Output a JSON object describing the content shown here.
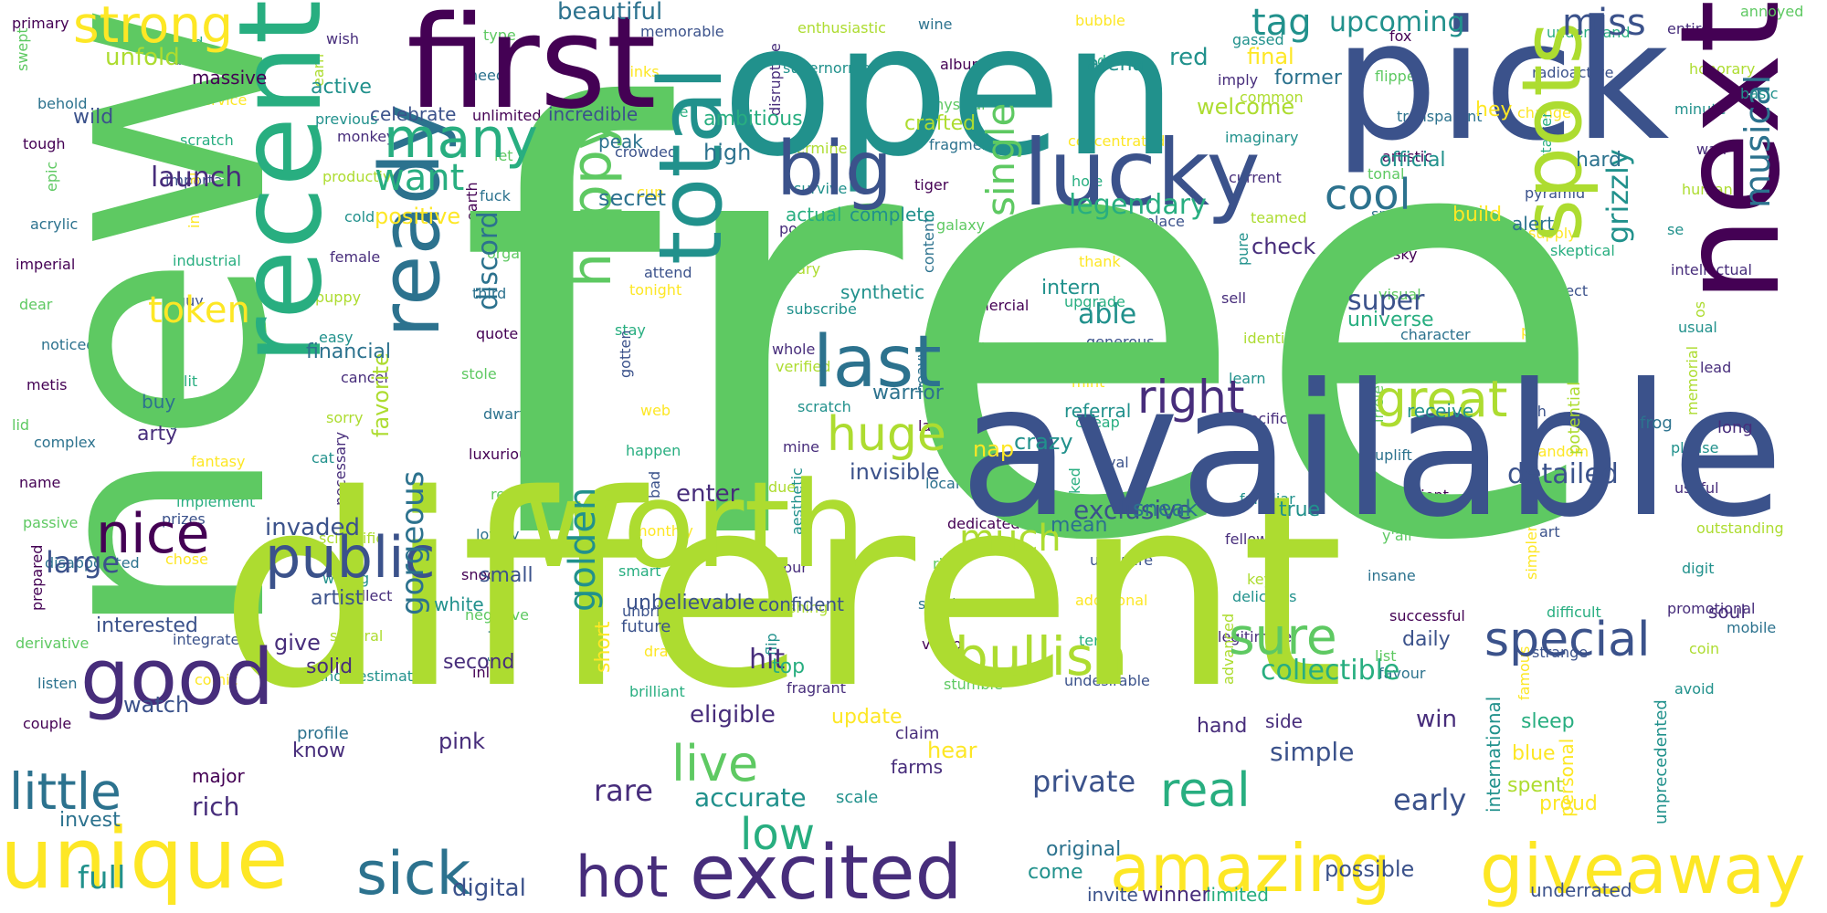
{
  "palette": {
    "dark_purple": "#440154",
    "indigo": "#472d7b",
    "navy_blue": "#3b528b",
    "steel_blue": "#2c728e",
    "teal": "#21918c",
    "sea_green": "#28ae80",
    "green": "#5ec962",
    "lime": "#addc30",
    "yellow": "#fde725"
  },
  "words": [
    {
      "text": "free",
      "color": "#5ec962"
    },
    {
      "text": "new",
      "color": "#5ec962"
    },
    {
      "text": "different",
      "color": "#addc30"
    },
    {
      "text": "available",
      "color": "#3b528b"
    },
    {
      "text": "open",
      "color": "#21918c"
    },
    {
      "text": "pick",
      "color": "#3b528b"
    },
    {
      "text": "first",
      "color": "#440154"
    },
    {
      "text": "recent",
      "color": "#28ae80"
    },
    {
      "text": "next",
      "color": "#440154"
    },
    {
      "text": "worth",
      "color": "#addc30"
    },
    {
      "text": "excited",
      "color": "#472d7b"
    },
    {
      "text": "ready",
      "color": "#2c728e"
    },
    {
      "text": "total",
      "color": "#21918c"
    },
    {
      "text": "lucky",
      "color": "#3b528b"
    },
    {
      "text": "spots",
      "color": "#addc30"
    },
    {
      "text": "unique",
      "color": "#fde725"
    },
    {
      "text": "giveaway",
      "color": "#fde725"
    },
    {
      "text": "amazing",
      "color": "#fde725"
    },
    {
      "text": "sick",
      "color": "#2c728e"
    },
    {
      "text": "hot",
      "color": "#472d7b"
    },
    {
      "text": "good",
      "color": "#472d7b"
    },
    {
      "text": "nice",
      "color": "#440154"
    },
    {
      "text": "last",
      "color": "#2c728e"
    },
    {
      "text": "big",
      "color": "#3b528b"
    },
    {
      "text": "happy",
      "color": "#5ec962"
    },
    {
      "text": "public",
      "color": "#3b528b"
    },
    {
      "text": "many",
      "color": "#28ae80"
    },
    {
      "text": "strong",
      "color": "#fde725"
    },
    {
      "text": "little",
      "color": "#2c728e"
    },
    {
      "text": "bullish",
      "color": "#addc30"
    },
    {
      "text": "special",
      "color": "#3b528b"
    },
    {
      "text": "sure",
      "color": "#5ec962"
    },
    {
      "text": "great",
      "color": "#addc30"
    },
    {
      "text": "huge",
      "color": "#addc30"
    },
    {
      "text": "live",
      "color": "#5ec962"
    },
    {
      "text": "real",
      "color": "#28ae80"
    },
    {
      "text": "right",
      "color": "#472d7b"
    },
    {
      "text": "cool",
      "color": "#2c728e"
    },
    {
      "text": "miss",
      "color": "#3b528b"
    },
    {
      "text": "tag",
      "color": "#21918c"
    },
    {
      "text": "upcoming",
      "color": "#21918c"
    },
    {
      "text": "low",
      "color": "#28ae80"
    },
    {
      "text": "full",
      "color": "#21918c"
    },
    {
      "text": "token",
      "color": "#fde725"
    },
    {
      "text": "want",
      "color": "#28ae80"
    },
    {
      "text": "gorgeous",
      "color": "#2c728e"
    },
    {
      "text": "golden",
      "color": "#21918c"
    },
    {
      "text": "discord",
      "color": "#2c728e"
    },
    {
      "text": "single",
      "color": "#5ec962"
    },
    {
      "text": "musical",
      "color": "#2c728e"
    },
    {
      "text": "grizzly",
      "color": "#21918c"
    },
    {
      "text": "legendary",
      "color": "#28ae80"
    },
    {
      "text": "exclusive",
      "color": "#3b528b"
    },
    {
      "text": "detailed",
      "color": "#3b528b"
    },
    {
      "text": "much",
      "color": "#addc30"
    },
    {
      "text": "private",
      "color": "#3b528b"
    },
    {
      "text": "early",
      "color": "#3b528b"
    },
    {
      "text": "accurate",
      "color": "#21918c"
    },
    {
      "text": "rare",
      "color": "#472d7b"
    },
    {
      "text": "digital",
      "color": "#3b528b"
    },
    {
      "text": "possible",
      "color": "#3b528b"
    },
    {
      "text": "collectible",
      "color": "#28ae80"
    },
    {
      "text": "simple",
      "color": "#3b528b"
    },
    {
      "text": "beautiful",
      "color": "#2c728e"
    },
    {
      "text": "launch",
      "color": "#472d7b"
    },
    {
      "text": "unfold",
      "color": "#addc30"
    },
    {
      "text": "massive",
      "color": "#440154"
    },
    {
      "text": "invaded",
      "color": "#3b528b"
    },
    {
      "text": "enter",
      "color": "#472d7b"
    },
    {
      "text": "invisible",
      "color": "#3b528b"
    },
    {
      "text": "warrior",
      "color": "#2c728e"
    },
    {
      "text": "nap",
      "color": "#fde725"
    },
    {
      "text": "crazy",
      "color": "#21918c"
    },
    {
      "text": "receive",
      "color": "#21918c"
    },
    {
      "text": "welcome",
      "color": "#addc30"
    },
    {
      "text": "former",
      "color": "#2c728e"
    },
    {
      "text": "red",
      "color": "#21918c"
    },
    {
      "text": "final",
      "color": "#fde725"
    },
    {
      "text": "arena",
      "color": "#21918c"
    },
    {
      "text": "active",
      "color": "#21918c"
    },
    {
      "text": "wild",
      "color": "#3b528b"
    },
    {
      "text": "celebrate",
      "color": "#3b528b"
    },
    {
      "text": "incredible",
      "color": "#3b528b"
    },
    {
      "text": "peak",
      "color": "#2c728e"
    },
    {
      "text": "ambitious",
      "color": "#28ae80"
    },
    {
      "text": "crafted",
      "color": "#addc30"
    },
    {
      "text": "high",
      "color": "#2c728e"
    },
    {
      "text": "secret",
      "color": "#2c728e"
    },
    {
      "text": "positive",
      "color": "#fde725"
    },
    {
      "text": "favorite",
      "color": "#addc30"
    },
    {
      "text": "complete",
      "color": "#21918c"
    },
    {
      "text": "actual",
      "color": "#28ae80"
    },
    {
      "text": "check",
      "color": "#472d7b"
    },
    {
      "text": "build",
      "color": "#fde725"
    },
    {
      "text": "official",
      "color": "#21918c"
    },
    {
      "text": "hard",
      "color": "#2c728e"
    },
    {
      "text": "alert",
      "color": "#2c728e"
    },
    {
      "text": "hey",
      "color": "#fde725"
    },
    {
      "text": "super",
      "color": "#3b528b"
    },
    {
      "text": "universe",
      "color": "#28ae80"
    },
    {
      "text": "able",
      "color": "#21918c"
    },
    {
      "text": "intern",
      "color": "#21918c"
    },
    {
      "text": "synthetic",
      "color": "#21918c"
    },
    {
      "text": "financial",
      "color": "#2c728e"
    },
    {
      "text": "arty",
      "color": "#472d7b"
    },
    {
      "text": "buy",
      "color": "#2c728e"
    },
    {
      "text": "large",
      "color": "#3b528b"
    },
    {
      "text": "interested",
      "color": "#3b528b"
    },
    {
      "text": "watch",
      "color": "#3b528b"
    },
    {
      "text": "give",
      "color": "#472d7b"
    },
    {
      "text": "solid",
      "color": "#472d7b"
    },
    {
      "text": "artist",
      "color": "#3b528b"
    },
    {
      "text": "white",
      "color": "#21918c"
    },
    {
      "text": "small",
      "color": "#3b528b"
    },
    {
      "text": "second",
      "color": "#472d7b"
    },
    {
      "text": "pink",
      "color": "#472d7b"
    },
    {
      "text": "rich",
      "color": "#472d7b"
    },
    {
      "text": "invest",
      "color": "#2c728e"
    },
    {
      "text": "know",
      "color": "#472d7b"
    },
    {
      "text": "profile",
      "color": "#2c728e"
    },
    {
      "text": "major",
      "color": "#440154"
    },
    {
      "text": "unbelievable",
      "color": "#3b528b"
    },
    {
      "text": "confident",
      "color": "#3b528b"
    },
    {
      "text": "future",
      "color": "#3b528b"
    },
    {
      "text": "mean",
      "color": "#2c728e"
    },
    {
      "text": "sneak",
      "color": "#2c728e"
    },
    {
      "text": "true",
      "color": "#21918c"
    },
    {
      "text": "daily",
      "color": "#3b528b"
    },
    {
      "text": "hit",
      "color": "#472d7b"
    },
    {
      "text": "top",
      "color": "#28ae80"
    },
    {
      "text": "eligible",
      "color": "#472d7b"
    },
    {
      "text": "update",
      "color": "#fde725"
    },
    {
      "text": "claim",
      "color": "#472d7b"
    },
    {
      "text": "hear",
      "color": "#fde725"
    },
    {
      "text": "farms",
      "color": "#472d7b"
    },
    {
      "text": "scale",
      "color": "#21918c"
    },
    {
      "text": "original",
      "color": "#2c728e"
    },
    {
      "text": "come",
      "color": "#21918c"
    },
    {
      "text": "invite",
      "color": "#3b528b"
    },
    {
      "text": "limited",
      "color": "#28ae80"
    },
    {
      "text": "winner",
      "color": "#472d7b"
    },
    {
      "text": "underrated",
      "color": "#3b528b"
    },
    {
      "text": "hand",
      "color": "#472d7b"
    },
    {
      "text": "side",
      "color": "#472d7b"
    },
    {
      "text": "win",
      "color": "#472d7b"
    },
    {
      "text": "blue",
      "color": "#fde725"
    },
    {
      "text": "sleep",
      "color": "#28ae80"
    },
    {
      "text": "spent",
      "color": "#addc30"
    },
    {
      "text": "proud",
      "color": "#fde725"
    },
    {
      "text": "unprecedented",
      "color": "#21918c"
    },
    {
      "text": "international",
      "color": "#21918c"
    },
    {
      "text": "personal",
      "color": "#fde725"
    },
    {
      "text": "mobile",
      "color": "#2c728e"
    },
    {
      "text": "soul",
      "color": "#472d7b"
    },
    {
      "text": "long",
      "color": "#472d7b"
    },
    {
      "text": "frog",
      "color": "#2c728e"
    },
    {
      "text": "potential",
      "color": "#addc30"
    },
    {
      "text": "annoyed",
      "color": "#5ec962"
    },
    {
      "text": "basic",
      "color": "#21918c"
    },
    {
      "text": "referral",
      "color": "#21918c"
    },
    {
      "text": "short",
      "color": "#fde725"
    },
    {
      "text": "wrong",
      "color": "#472d7b"
    }
  ],
  "small_words": [
    "primary",
    "liked",
    "wish",
    "type",
    "memorable",
    "enthusiastic",
    "wine",
    "bubble",
    "gassed",
    "fox",
    "understand",
    "entire",
    "swept",
    "dive",
    "earn",
    "need",
    "links",
    "supernormal",
    "album",
    "dumb",
    "imply",
    "flipped",
    "radioactive",
    "honorary",
    "behold",
    "service",
    "previous",
    "unlimited",
    "imagine",
    "disruptive",
    "physical",
    "mix",
    "common",
    "transparent",
    "change",
    "minute",
    "tough",
    "scratch",
    "monkey",
    "let",
    "crowded",
    "determine",
    "fragment",
    "concentrated",
    "imaginary",
    "artistic",
    "starter",
    "wan",
    "epic",
    "important",
    "productive",
    "fuck",
    "cup",
    "survive",
    "tiger",
    "hole",
    "current",
    "tonal",
    "pyramid",
    "human",
    "acrylic",
    "internal",
    "cold",
    "earth",
    "stick",
    "portrayal",
    "galaxy",
    "marketplace",
    "teamed",
    "spotlight",
    "supply",
    "se",
    "imperial",
    "industrial",
    "female",
    "organic",
    "attend",
    "military",
    "content",
    "thank",
    "pure",
    "sky",
    "skeptical",
    "intellectual",
    "dear",
    "guy",
    "puppy",
    "third",
    "tonight",
    "subscribe",
    "commercial",
    "upgrade",
    "sell",
    "visual",
    "perfect",
    "os",
    "noticed",
    "thread",
    "easy",
    "quote",
    "stay",
    "whole",
    "bearing",
    "generous",
    "identical",
    "character",
    "peaked",
    "usual",
    "metis",
    "lit",
    "cancel",
    "stole",
    "gotten",
    "verified",
    "heavy",
    "mint",
    "learn",
    "tasty",
    "fill",
    "lead",
    "lid",
    "gm",
    "sorry",
    "dwarf",
    "web",
    "scratch",
    "late",
    "cheap",
    "specific",
    "irrelevant",
    "oh",
    "memorial",
    "complex",
    "fantasy",
    "cat",
    "luxurious",
    "happen",
    "mine",
    "ass",
    "rival",
    "initial",
    "uplift",
    "random",
    "please",
    "name",
    "implement",
    "necessary",
    "revive",
    "bad",
    "due",
    "local",
    "concerned",
    "familiar",
    "patient",
    "prime",
    "useful",
    "passive",
    "prizes",
    "scientific",
    "lovely",
    "monthly",
    "aesthetic",
    "dedicated",
    "shocked",
    "fellow",
    "y'all",
    "art",
    "outstanding",
    "disappointed",
    "chose",
    "willing",
    "snoop",
    "smart",
    "sour",
    "rip",
    "unaware",
    "key",
    "insane",
    "simpler",
    "digit",
    "prepared",
    "see",
    "collect",
    "negative",
    "unbridled",
    "fishing",
    "scholar",
    "additional",
    "delicious",
    "successful",
    "difficult",
    "promotional",
    "derivative",
    "integrated",
    "several",
    "front",
    "draw",
    "flip",
    "video",
    "terra",
    "legitimate",
    "list",
    "strange",
    "coin",
    "listen",
    "comic",
    "underestimate",
    "inlet",
    "brilliant",
    "fragrant",
    "stumble",
    "undesirable",
    "advanced",
    "favour",
    "famous",
    "avoid",
    "couple"
  ]
}
